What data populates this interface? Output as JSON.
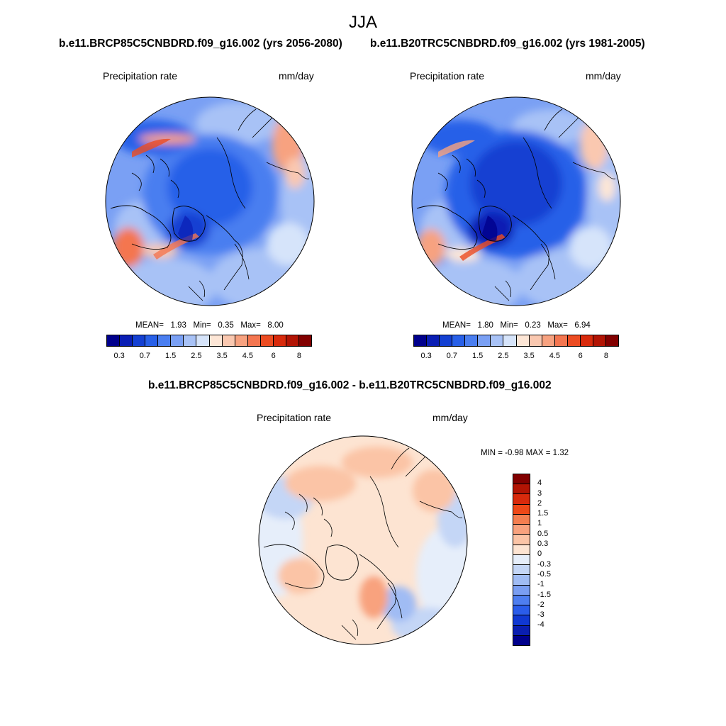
{
  "figure": {
    "season": "JJA",
    "var_label": "Precipitation rate",
    "unit_label": "mm/day"
  },
  "panels": [
    {
      "title": "b.e11.BRCP85C5CNBDRD.f09_g16.002 (yrs 2056-2080)",
      "mean_label": "MEAN=",
      "mean": "1.93",
      "min_label": "Min=",
      "min": "0.35",
      "max_label": "Max=",
      "max": "8.00"
    },
    {
      "title": "b.e11.B20TRC5CNBDRD.f09_g16.002 (yrs 1981-2005)",
      "mean_label": "MEAN=",
      "mean": "1.80",
      "min_label": "Min=",
      "min": "0.23",
      "max_label": "Max=",
      "max": "6.94"
    }
  ],
  "diff_panel": {
    "title": "b.e11.BRCP85C5CNBDRD.f09_g16.002 - b.e11.B20TRC5CNBDRD.f09_g16.002",
    "minmax_text": "MIN =  -0.98 MAX =   1.32"
  },
  "colorbar_abs": {
    "colors": [
      "#00008c",
      "#0a1eb4",
      "#1440d2",
      "#2860e8",
      "#4a7ef0",
      "#7aa0f4",
      "#a8c2f6",
      "#d6e4fa",
      "#fde6d6",
      "#fac8b0",
      "#f7a280",
      "#f47650",
      "#ec4c22",
      "#d82a0c",
      "#b21404",
      "#820000"
    ],
    "ticks": [
      "0.3",
      "0.7",
      "1.5",
      "2.5",
      "3.5",
      "4.5",
      "6",
      "8"
    ]
  },
  "colorbar_diff": {
    "colors": [
      "#820000",
      "#b21404",
      "#d82a0c",
      "#ee4818",
      "#f47e50",
      "#f8a27e",
      "#fbc4a6",
      "#fde4d2",
      "#e6eefa",
      "#c4d6f6",
      "#a0bcf4",
      "#7a9ef2",
      "#4e7ef0",
      "#2a5cea",
      "#1038d2",
      "#0a1eb0",
      "#00008c"
    ],
    "ticks": [
      "4",
      "3",
      "2",
      "1.5",
      "1",
      "0.5",
      "0.3",
      "0",
      "-0.3",
      "-0.5",
      "-1",
      "-1.5",
      "-2",
      "-3",
      "-4"
    ]
  }
}
